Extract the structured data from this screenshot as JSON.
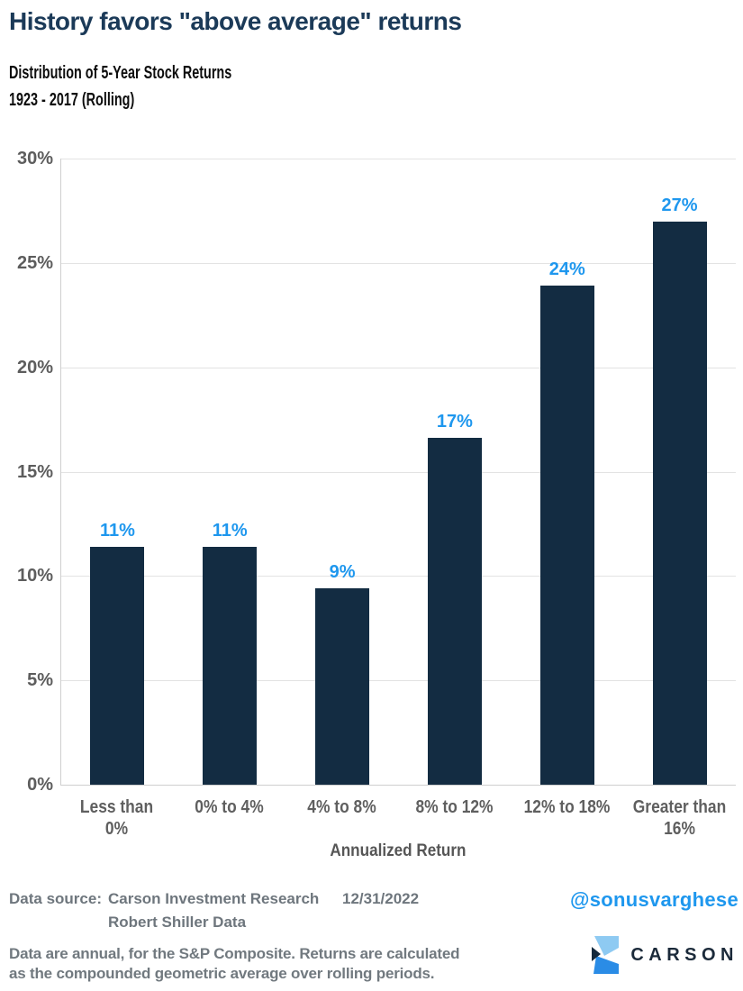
{
  "title": "History favors \"above average\" returns",
  "subtitle_line1": "Distribution of 5-Year Stock Returns",
  "subtitle_line2": "1923 - 2017 (Rolling)",
  "chart_data": {
    "type": "bar",
    "categories": [
      "Less than 0%",
      "0% to 4%",
      "4% to 8%",
      "8% to 12%",
      "12% to 18%",
      "Greater than 16%"
    ],
    "categories_lines": [
      [
        "Less than",
        "0%"
      ],
      [
        "0% to 4%"
      ],
      [
        "4% to 8%"
      ],
      [
        "8% to 12%"
      ],
      [
        "12% to 18%"
      ],
      [
        "Greater than",
        "16%"
      ]
    ],
    "values": [
      11.4,
      11.4,
      9.4,
      16.6,
      23.9,
      27.0
    ],
    "value_labels": [
      "11%",
      "11%",
      "9%",
      "17%",
      "24%",
      "27%"
    ],
    "xlabel": "Annualized Return",
    "ylabel": "",
    "ylim": [
      0,
      30
    ],
    "ytick_labels": [
      "30%",
      "25%",
      "20%",
      "15%",
      "10%",
      "5%",
      "0%"
    ],
    "grid": true,
    "legend": "none",
    "bar_color": "#132c42",
    "value_label_color": "#1e97ee"
  },
  "footer": {
    "source_label": "Data source:",
    "source_line1": "Carson Investment Research",
    "source_line2": "Robert Shiller Data",
    "date": "12/31/2022",
    "handle": "@sonusvarghese",
    "note_line1": "Data are annual, for the S&P Composite. Returns are calculated",
    "note_line2": "as the compounded geometric average over rolling periods.",
    "brand": "CARSON"
  },
  "colors": {
    "title_navy": "#1b3a58",
    "bar_navy": "#132c42",
    "accent_blue": "#1e97ee",
    "axis_gray": "#5d5d5d",
    "footer_gray": "#6e767d",
    "gridline": "#e3e3e3",
    "logo_light_blue": "#8ecaf2",
    "logo_blue": "#2a8ce6",
    "logo_navy": "#14293c"
  }
}
